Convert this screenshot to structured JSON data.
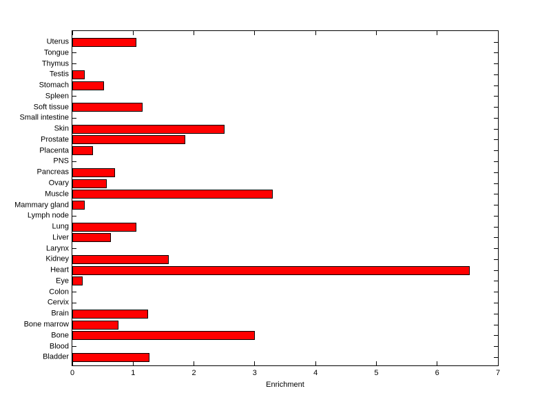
{
  "chart_data": {
    "type": "bar",
    "orientation": "horizontal",
    "title": "",
    "xlabel": "Enrichment",
    "ylabel": "",
    "xlim": [
      0,
      7
    ],
    "xticks": [
      0,
      1,
      2,
      3,
      4,
      5,
      6,
      7
    ],
    "grid": false,
    "legend": false,
    "bar_color": "#ff0000",
    "bar_edge_color": "#000000",
    "axis_color": "#000000",
    "background_color": "#ffffff",
    "categories": [
      "Uterus",
      "Tongue",
      "Thymus",
      "Testis",
      "Stomach",
      "Spleen",
      "Soft tissue",
      "Small intestine",
      "Skin",
      "Prostate",
      "Placenta",
      "PNS",
      "Pancreas",
      "Ovary",
      "Muscle",
      "Mammary gland",
      "Lymph node",
      "Lung",
      "Liver",
      "Larynx",
      "Kidney",
      "Heart",
      "Eye",
      "Colon",
      "Cervix",
      "Brain",
      "Bone marrow",
      "Bone",
      "Blood",
      "Bladder"
    ],
    "values": [
      1.05,
      0,
      0,
      0.2,
      0.52,
      0,
      1.16,
      0,
      2.5,
      1.86,
      0.34,
      0,
      0.7,
      0.57,
      3.3,
      0.2,
      0,
      1.05,
      0.63,
      0,
      1.59,
      6.53,
      0.17,
      0,
      0,
      1.25,
      0.76,
      3.0,
      0,
      1.27
    ]
  }
}
